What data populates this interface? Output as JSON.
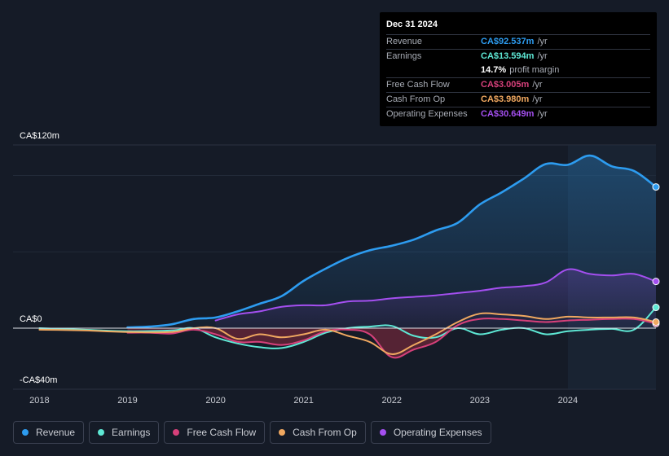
{
  "tooltip": {
    "date": "Dec 31 2024",
    "rows": [
      {
        "label": "Revenue",
        "value": "CA$92.537m",
        "unit": "/yr",
        "color": "#2d9cf0"
      },
      {
        "label": "Earnings",
        "value": "CA$13.594m",
        "unit": "/yr",
        "color": "#5ee8d5"
      },
      {
        "label": "",
        "value": "14.7%",
        "unit": "profit margin",
        "color": "#ffffff"
      },
      {
        "label": "Free Cash Flow",
        "value": "CA$3.005m",
        "unit": "/yr",
        "color": "#d6407a"
      },
      {
        "label": "Cash From Op",
        "value": "CA$3.980m",
        "unit": "/yr",
        "color": "#f0a860"
      },
      {
        "label": "Operating Expenses",
        "value": "CA$30.649m",
        "unit": "/yr",
        "color": "#a44ff0"
      }
    ]
  },
  "legend": [
    {
      "label": "Revenue",
      "color": "#2d9cf0"
    },
    {
      "label": "Earnings",
      "color": "#5ee8d5"
    },
    {
      "label": "Free Cash Flow",
      "color": "#d6407a"
    },
    {
      "label": "Cash From Op",
      "color": "#f0a860"
    },
    {
      "label": "Operating Expenses",
      "color": "#a44ff0"
    }
  ],
  "chart_data": {
    "type": "line",
    "title": "",
    "xlabel": "",
    "ylabel": "",
    "y_tick_labels": [
      "CA$120m",
      "CA$0",
      "-CA$40m"
    ],
    "y_ticks": [
      120,
      0,
      -40
    ],
    "ylim": [
      -40,
      120
    ],
    "xlim": [
      2017.7,
      2025.0
    ],
    "x_tick_labels": [
      "2018",
      "2019",
      "2020",
      "2021",
      "2022",
      "2023",
      "2024"
    ],
    "x_ticks": [
      2018,
      2019,
      2020,
      2021,
      2022,
      2023,
      2024
    ],
    "highlight_start": 2024.0,
    "series": [
      {
        "name": "Revenue",
        "color": "#2d9cf0",
        "fill": true,
        "x": [
          2019.0,
          2019.25,
          2019.5,
          2019.75,
          2020.0,
          2020.25,
          2020.5,
          2020.75,
          2021.0,
          2021.25,
          2021.5,
          2021.75,
          2022.0,
          2022.25,
          2022.5,
          2022.75,
          2023.0,
          2023.25,
          2023.5,
          2023.75,
          2024.0,
          2024.25,
          2024.5,
          2024.75,
          2025.0
        ],
        "y": [
          0.5,
          1.0,
          2.5,
          6.0,
          7.0,
          11.0,
          16.0,
          21.0,
          31.0,
          39.0,
          46.0,
          51.0,
          54.0,
          58.0,
          64.0,
          69.0,
          81.0,
          89.0,
          98.0,
          107.5,
          107.0,
          113.0,
          106.0,
          103.0,
          92.5
        ]
      },
      {
        "name": "Earnings",
        "color": "#5ee8d5",
        "x": [
          2018.0,
          2018.5,
          2019.0,
          2019.5,
          2019.75,
          2020.0,
          2020.25,
          2020.5,
          2020.75,
          2021.0,
          2021.25,
          2021.5,
          2021.75,
          2022.0,
          2022.25,
          2022.5,
          2022.75,
          2023.0,
          2023.25,
          2023.5,
          2023.75,
          2024.0,
          2024.25,
          2024.5,
          2024.75,
          2025.0
        ],
        "y": [
          0.0,
          -1.0,
          -2.0,
          -1.5,
          0.0,
          -6.0,
          -10.0,
          -12.5,
          -13.0,
          -9.0,
          -3.0,
          0.0,
          1.0,
          1.5,
          -5.0,
          -6.0,
          0.0,
          -4.0,
          -1.0,
          0.0,
          -4.0,
          -2.0,
          -1.0,
          -0.5,
          -1.0,
          13.6
        ]
      },
      {
        "name": "Free Cash Flow",
        "color": "#d6407a",
        "fill_negative": true,
        "x": [
          2019.0,
          2019.25,
          2019.5,
          2019.75,
          2020.0,
          2020.25,
          2020.5,
          2020.75,
          2021.0,
          2021.25,
          2021.5,
          2021.75,
          2022.0,
          2022.25,
          2022.5,
          2022.75,
          2023.0,
          2023.25,
          2023.5,
          2023.75,
          2024.0,
          2024.25,
          2024.5,
          2024.75,
          2025.0
        ],
        "y": [
          -3.0,
          -3.0,
          -3.5,
          -1.0,
          -4.0,
          -9.0,
          -9.0,
          -11.0,
          -8.0,
          -2.0,
          -1.0,
          -4.0,
          -19.0,
          -14.0,
          -9.0,
          2.0,
          6.0,
          6.0,
          5.0,
          4.0,
          5.0,
          5.5,
          6.0,
          6.0,
          3.0
        ]
      },
      {
        "name": "Cash From Op",
        "color": "#f0a860",
        "x": [
          2018.0,
          2018.5,
          2019.0,
          2019.5,
          2019.75,
          2020.0,
          2020.25,
          2020.5,
          2020.75,
          2021.0,
          2021.25,
          2021.5,
          2021.75,
          2022.0,
          2022.25,
          2022.5,
          2022.75,
          2023.0,
          2023.25,
          2023.5,
          2023.75,
          2024.0,
          2024.25,
          2024.5,
          2024.75,
          2025.0
        ],
        "y": [
          -1.0,
          -1.5,
          -2.5,
          -2.5,
          0.0,
          0.0,
          -7.0,
          -4.0,
          -6.0,
          -4.0,
          -1.0,
          -5.0,
          -9.0,
          -17.0,
          -11.0,
          -4.0,
          4.0,
          9.5,
          9.0,
          8.0,
          6.0,
          7.5,
          7.0,
          7.0,
          7.0,
          4.0
        ]
      },
      {
        "name": "Operating Expenses",
        "color": "#a44ff0",
        "fill": true,
        "x": [
          2020.0,
          2020.25,
          2020.5,
          2020.75,
          2021.0,
          2021.25,
          2021.5,
          2021.75,
          2022.0,
          2022.25,
          2022.5,
          2022.75,
          2023.0,
          2023.25,
          2023.5,
          2023.75,
          2024.0,
          2024.25,
          2024.5,
          2024.75,
          2025.0
        ],
        "y": [
          5.0,
          9.0,
          11.0,
          14.0,
          15.0,
          15.0,
          17.5,
          18.0,
          19.5,
          20.5,
          21.5,
          23.0,
          24.5,
          26.5,
          27.5,
          30.0,
          38.5,
          35.5,
          34.5,
          35.5,
          30.6
        ]
      }
    ]
  }
}
